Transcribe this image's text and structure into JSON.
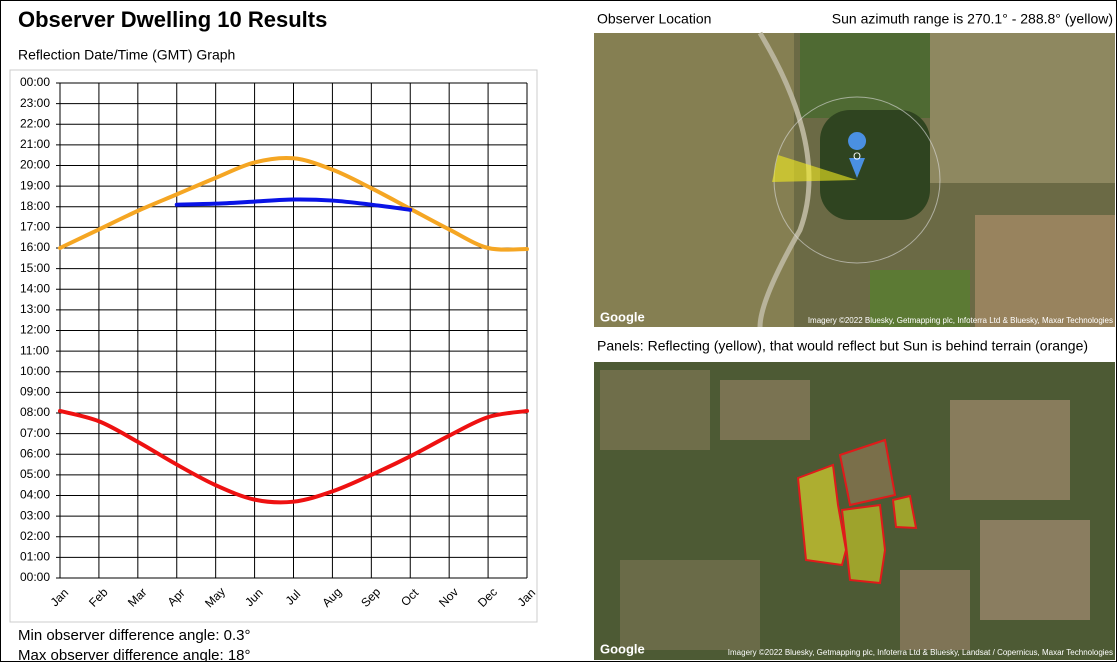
{
  "header": {
    "title": "Observer Dwelling 10 Results",
    "subtitle": "Reflection Date/Time (GMT) Graph"
  },
  "chart_data": {
    "type": "line",
    "categories": [
      "Jan",
      "Feb",
      "Mar",
      "Apr",
      "May",
      "Jun",
      "Jul",
      "Aug",
      "Sep",
      "Oct",
      "Nov",
      "Dec",
      "Jan"
    ],
    "series": [
      {
        "color": "#f5a623",
        "values": [
          16.0,
          16.9,
          17.8,
          18.6,
          19.4,
          20.15,
          20.35,
          19.8,
          18.9,
          17.9,
          16.9,
          16.0,
          15.95
        ]
      },
      {
        "color": "#0a14e6",
        "values": [
          null,
          null,
          null,
          18.1,
          18.15,
          18.25,
          18.35,
          18.3,
          18.1,
          17.85,
          null,
          null,
          null
        ]
      },
      {
        "color": "#ee1111",
        "values": [
          8.1,
          7.6,
          6.6,
          5.5,
          4.5,
          3.8,
          3.7,
          4.2,
          5.0,
          5.9,
          6.9,
          7.8,
          8.1
        ]
      }
    ],
    "ylim": [
      0,
      24
    ],
    "yticks": [
      {
        "value": 0,
        "label": "00:00"
      },
      {
        "value": 1,
        "label": "01:00"
      },
      {
        "value": 2,
        "label": "02:00"
      },
      {
        "value": 3,
        "label": "03:00"
      },
      {
        "value": 4,
        "label": "04:00"
      },
      {
        "value": 5,
        "label": "05:00"
      },
      {
        "value": 6,
        "label": "06:00"
      },
      {
        "value": 7,
        "label": "07:00"
      },
      {
        "value": 8,
        "label": "08:00"
      },
      {
        "value": 9,
        "label": "09:00"
      },
      {
        "value": 10,
        "label": "10:00"
      },
      {
        "value": 11,
        "label": "11:00"
      },
      {
        "value": 12,
        "label": "12:00"
      },
      {
        "value": 13,
        "label": "13:00"
      },
      {
        "value": 14,
        "label": "14:00"
      },
      {
        "value": 15,
        "label": "15:00"
      },
      {
        "value": 16,
        "label": "16:00"
      },
      {
        "value": 17,
        "label": "17:00"
      },
      {
        "value": 18,
        "label": "18:00"
      },
      {
        "value": 19,
        "label": "19:00"
      },
      {
        "value": 20,
        "label": "20:00"
      },
      {
        "value": 21,
        "label": "21:00"
      },
      {
        "value": 22,
        "label": "22:00"
      },
      {
        "value": 23,
        "label": "23:00"
      },
      {
        "value": 24,
        "label": "00:00"
      }
    ],
    "grid": true
  },
  "stats": {
    "min": "Min observer difference angle: 0.3°",
    "max": "Max observer difference angle: 18°"
  },
  "maps": {
    "location_title": "Observer Location",
    "azimuth": "Sun azimuth range is 270.1° - 288.8° (yellow)",
    "marker": "O",
    "google_1": "Google",
    "credit_1": "Imagery ©2022 Bluesky, Getmapping plc, Infoterra Ltd & Bluesky, Maxar Technologies",
    "panels_title": "Panels: Reflecting (yellow), that would reflect but Sun is behind terrain (orange)",
    "google_2": "Google",
    "credit_2": "Imagery ©2022 Bluesky, Getmapping plc, Infoterra Ltd & Bluesky, Landsat / Copernicus, Maxar Technologies"
  }
}
